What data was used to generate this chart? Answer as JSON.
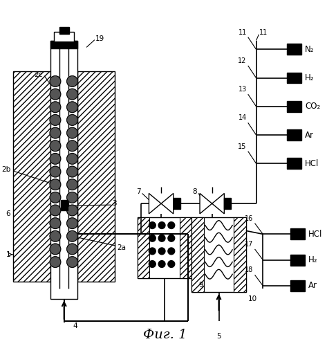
{
  "title": "Фиг. 1",
  "bg_color": "#ffffff",
  "gas_labels_top": [
    "N₂",
    "H₂",
    "CO₂",
    "Ar",
    "HCl"
  ],
  "gas_numbers_top": [
    "11",
    "12",
    "13",
    "14",
    "15"
  ],
  "gas_labels_bottom": [
    "HCl",
    "H₂",
    "Ar"
  ],
  "gas_numbers_bottom": [
    "16",
    "17",
    "18"
  ]
}
